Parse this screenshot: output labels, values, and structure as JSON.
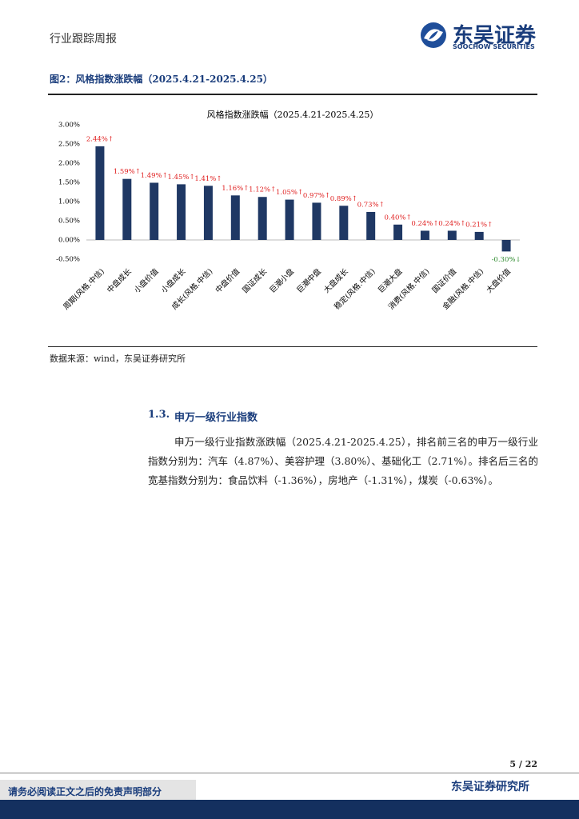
{
  "header": {
    "report_type": "行业跟踪周报",
    "brand": "东吴证券",
    "brand_en": "SOOCHOW SECURITIES"
  },
  "figure": {
    "caption": "图2：风格指数涨跌幅（2025.4.21-2025.4.25）",
    "source": "数据来源：wind，东吴证券研究所"
  },
  "chart_data": {
    "type": "bar",
    "title": "风格指数涨跌幅（2025.4.21-2025.4.25）",
    "categories": [
      "周期(风格.中信)",
      "中盘成长",
      "小盘价值",
      "小盘成长",
      "成长(风格.中信)",
      "中盘价值",
      "国证成长",
      "巨潮小盘",
      "巨潮中盘",
      "大盘成长",
      "稳定(风格.中信)",
      "巨潮大盘",
      "消费(风格.中信)",
      "国证价值",
      "金融(风格.中信)",
      "大盘价值"
    ],
    "values": [
      2.44,
      1.59,
      1.49,
      1.45,
      1.41,
      1.16,
      1.12,
      1.05,
      0.97,
      0.89,
      0.73,
      0.4,
      0.24,
      0.24,
      0.21,
      -0.3
    ],
    "value_labels": [
      "2.44%↑",
      "1.59%↑",
      "1.49%↑",
      "1.45%↑",
      "1.41%↑",
      "1.16%↑",
      "1.12%↑",
      "1.05%↑",
      "0.97%↑",
      "0.89%↑",
      "0.73%↑",
      "0.40%↑",
      "0.24%↑",
      "0.24%↑",
      "0.21%↑",
      "-0.30%↓"
    ],
    "color": "#1f3864",
    "up_label_color": "#e02020",
    "down_label_color": "#2e8b2e",
    "ylim": [
      -0.5,
      3.0
    ],
    "yticks": [
      {
        "value": -0.5,
        "label": "-0.50%"
      },
      {
        "value": 0,
        "label": "0.00%"
      },
      {
        "value": 0.5,
        "label": "0.50%"
      },
      {
        "value": 1.0,
        "label": "1.00%"
      },
      {
        "value": 1.5,
        "label": "1.50%"
      },
      {
        "value": 2.0,
        "label": "2.00%"
      },
      {
        "value": 2.5,
        "label": "2.50%"
      },
      {
        "value": 3.0,
        "label": "3.00%"
      }
    ],
    "grid": false
  },
  "section": {
    "number": "1.3.",
    "title": "申万一级行业指数",
    "paragraph": "申万一级行业指数涨跌幅（2025.4.21-2025.4.25），排名前三名的申万一级行业指数分别为：汽车（4.87%）、美容护理（3.80%）、基础化工（2.71%）。排名后三名的宽基指数分别为：食品饮料（-1.36%），房地产（-1.31%），煤炭（-0.63%）。"
  },
  "footer": {
    "page": "5 / 22",
    "disclaimer": "请务必阅读正文之后的免责声明部分",
    "institute": "东吴证券研究所"
  }
}
